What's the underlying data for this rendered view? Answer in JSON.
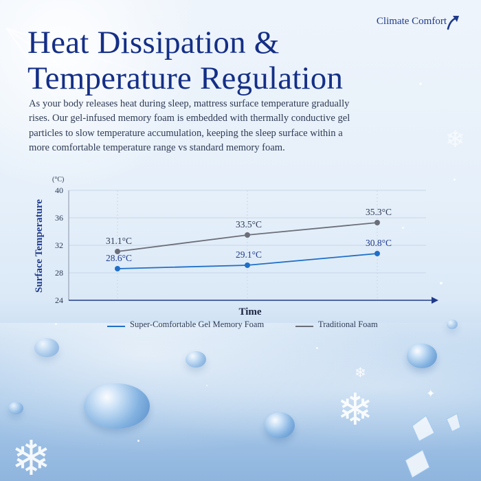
{
  "brand": {
    "label": "Climate Comfort",
    "icon": "curved-up-arrow-icon"
  },
  "title": {
    "line1": "Heat Dissipation &",
    "line2": "Temperature Regulation"
  },
  "description": "As your body releases heat during sleep, mattress surface temperature gradually rises. Our gel-infused memory foam is embedded with thermally conductive gel particles to slow temperature accumulation, keeping the sleep surface within a more comfortable temperature range vs standard memory foam.",
  "colors": {
    "title": "#142f86",
    "gel_series": "#1f6fc8",
    "traditional_series": "#6b6e78",
    "axis": "#1f3a8a"
  },
  "chart_data": {
    "type": "line",
    "title": "",
    "xlabel": "Time",
    "ylabel": "Surface Temperature",
    "yunit": "(°C)",
    "ylim": [
      24,
      40
    ],
    "yticks": [
      24,
      28,
      32,
      36,
      40
    ],
    "grid": true,
    "legend_position": "bottom",
    "x": [
      1,
      2,
      3
    ],
    "series": [
      {
        "name": "Super-Comfortable Gel Memory Foam",
        "values": [
          28.6,
          29.1,
          30.8
        ],
        "labels": [
          "28.6°C",
          "29.1°C",
          "30.8°C"
        ],
        "color": "#1f6fc8"
      },
      {
        "name": "Traditional Foam",
        "values": [
          31.1,
          33.5,
          35.3
        ],
        "labels": [
          "31.1°C",
          "33.5°C",
          "35.3°C"
        ],
        "color": "#6b6e78"
      }
    ]
  }
}
